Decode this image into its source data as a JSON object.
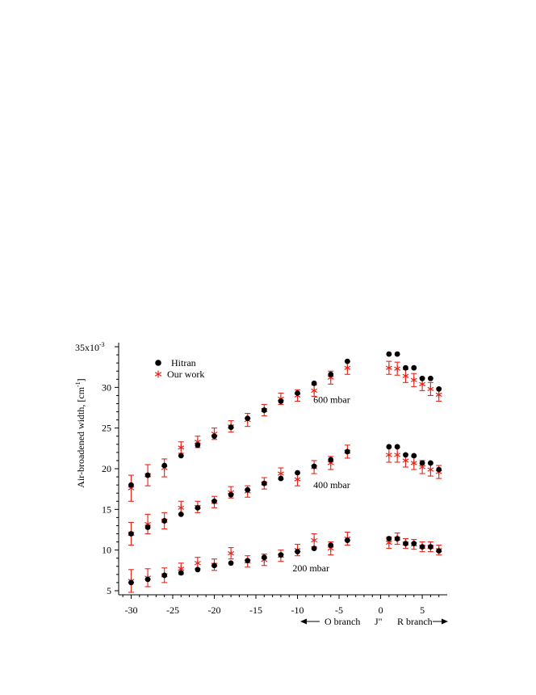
{
  "chart_data": {
    "type": "scatter",
    "ylabel": "Air-broadened width, [cm",
    "ylabel_sup": "-1",
    "ylabel_close": "]",
    "y_multiplier": "35x10",
    "y_multiplier_sup": "-3",
    "xlim": [
      -31.5,
      8
    ],
    "ylim": [
      4.5,
      35.5
    ],
    "x_ticks": [
      -30,
      -25,
      -20,
      -15,
      -10,
      -5,
      0,
      5
    ],
    "y_ticks": [
      5,
      10,
      15,
      20,
      25,
      30
    ],
    "legend": {
      "position": "top-left"
    },
    "branch_labels": {
      "o_branch": "O branch",
      "j_label": "J\"",
      "r_branch": "R branch"
    },
    "colors": {
      "hitran": "#000000",
      "ours": "#e8231a"
    },
    "series": [
      {
        "name": "Hitran",
        "marker": "circle",
        "groups": [
          {
            "x": [
              -30,
              -28,
              -26,
              -24,
              -22,
              -20,
              -18,
              -16,
              -14,
              -12,
              -10,
              -8,
              -6,
              -4,
              1,
              2,
              3,
              4,
              5,
              6,
              7
            ],
            "y": [
              6.0,
              6.4,
              6.9,
              7.2,
              7.6,
              8.1,
              8.4,
              8.7,
              9.1,
              9.4,
              9.8,
              10.2,
              10.6,
              11.2,
              11.4,
              11.4,
              10.8,
              10.8,
              10.4,
              10.4,
              9.9
            ]
          },
          {
            "x": [
              -30,
              -28,
              -26,
              -24,
              -22,
              -20,
              -18,
              -16,
              -14,
              -12,
              -10,
              -8,
              -6,
              -4,
              1,
              2,
              3,
              4,
              5,
              6,
              7
            ],
            "y": [
              12.0,
              12.8,
              13.6,
              14.4,
              15.2,
              16.0,
              16.8,
              17.4,
              18.2,
              18.8,
              19.5,
              20.3,
              21.1,
              22.1,
              22.7,
              22.7,
              21.7,
              21.6,
              20.7,
              20.7,
              19.9
            ]
          },
          {
            "x": [
              -30,
              -28,
              -26,
              -24,
              -22,
              -20,
              -18,
              -16,
              -14,
              -12,
              -10,
              -8,
              -6,
              -4,
              1,
              2,
              3,
              4,
              5,
              6,
              7
            ],
            "y": [
              18.0,
              19.2,
              20.4,
              21.6,
              22.9,
              24.0,
              25.1,
              26.2,
              27.2,
              28.3,
              29.3,
              30.5,
              31.6,
              33.2,
              34.1,
              34.1,
              32.4,
              32.4,
              31.1,
              31.1,
              29.8
            ]
          }
        ]
      },
      {
        "name": "Our work",
        "marker": "asterisk",
        "groups": [
          {
            "x": [
              -30,
              -28,
              -26,
              -24,
              -22,
              -20,
              -18,
              -16,
              -14,
              -12,
              -10,
              -8,
              -6,
              -4,
              1,
              2,
              3,
              4,
              5,
              6,
              7
            ],
            "y": [
              6.2,
              6.6,
              6.9,
              7.7,
              8.4,
              8.2,
              9.6,
              8.6,
              8.8,
              9.3,
              10.0,
              11.2,
              10.2,
              11.4,
              10.9,
              11.4,
              10.8,
              10.7,
              10.4,
              10.4,
              10.0
            ],
            "err": [
              1.4,
              1.1,
              0.9,
              0.7,
              0.7,
              0.7,
              0.7,
              0.7,
              0.7,
              0.7,
              0.7,
              0.8,
              0.8,
              0.8,
              0.7,
              0.7,
              0.6,
              0.6,
              0.6,
              0.6,
              0.6
            ]
          },
          {
            "x": [
              -30,
              -28,
              -26,
              -24,
              -22,
              -20,
              -18,
              -16,
              -14,
              -12,
              -10,
              -8,
              -6,
              -4,
              1,
              2,
              3,
              4,
              5,
              6,
              7
            ],
            "y": [
              12.0,
              13.2,
              13.6,
              15.2,
              15.3,
              15.9,
              17.1,
              17.2,
              18.2,
              19.4,
              18.7,
              20.2,
              20.7,
              22.1,
              21.7,
              21.7,
              21.0,
              20.7,
              20.2,
              19.9,
              19.6
            ],
            "err": [
              1.4,
              1.2,
              1.0,
              0.8,
              0.7,
              0.7,
              0.7,
              0.7,
              0.7,
              0.7,
              0.8,
              0.8,
              0.8,
              0.8,
              0.9,
              0.9,
              0.8,
              0.8,
              0.8,
              0.8,
              0.8
            ]
          },
          {
            "x": [
              -30,
              -28,
              -26,
              -24,
              -22,
              -20,
              -18,
              -16,
              -14,
              -12,
              -10,
              -8,
              -6,
              -4,
              1,
              2,
              3,
              4,
              5,
              6,
              7
            ],
            "y": [
              17.6,
              19.2,
              20.1,
              22.6,
              23.3,
              24.3,
              25.2,
              26.0,
              27.2,
              28.6,
              29.0,
              29.6,
              31.2,
              32.4,
              32.4,
              32.3,
              31.4,
              30.9,
              30.4,
              29.8,
              29.1
            ],
            "err": [
              1.6,
              1.3,
              1.1,
              0.7,
              0.7,
              0.7,
              0.7,
              0.8,
              0.7,
              0.7,
              0.7,
              0.7,
              0.8,
              0.8,
              0.8,
              0.8,
              0.8,
              0.8,
              0.8,
              0.8,
              0.8
            ]
          }
        ]
      }
    ],
    "annotations": [
      {
        "text": "600 mbar",
        "x": -8.1,
        "y": 28.5
      },
      {
        "text": "400 mbar",
        "x": -8.1,
        "y": 18.0
      },
      {
        "text": "200 mbar",
        "x": -10.6,
        "y": 7.8
      }
    ]
  }
}
